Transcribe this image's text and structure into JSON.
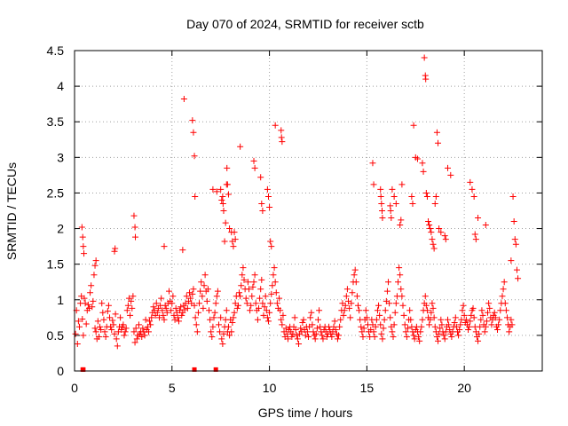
{
  "chart_data": {
    "type": "scatter",
    "title": "Day 070 of 2024, SRMTID for receiver sctb",
    "xlabel": "GPS time / hours",
    "ylabel": "SRMTID / TECUs",
    "xlim": [
      0,
      24
    ],
    "ylim": [
      0,
      4.5
    ],
    "xticks": [
      0,
      5,
      10,
      15,
      20
    ],
    "yticks": [
      0,
      0.5,
      1,
      1.5,
      2,
      2.5,
      3,
      3.5,
      4,
      4.5
    ],
    "xtick_labels": [
      "0",
      "5",
      "10",
      "15",
      "20"
    ],
    "ytick_labels": [
      "0",
      "0.5",
      "1",
      "1.5",
      "2",
      "2.5",
      "3",
      "3.5",
      "4",
      "4.5"
    ],
    "grid": true,
    "series": [
      {
        "name": "SRMTID",
        "marker": "plus",
        "color": "#ff0000",
        "x": [
          0.05,
          0.1,
          0.15,
          0.2,
          0.25,
          0.3,
          0.35,
          0.4,
          0.45,
          0.5,
          0.55,
          0.6,
          0.65,
          0.7,
          0.75,
          0.8,
          0.85,
          0.9,
          0.95,
          1.0,
          1.05,
          1.1,
          1.15,
          1.2,
          1.25,
          1.3,
          1.35,
          1.4,
          1.45,
          1.5,
          1.55,
          1.6,
          1.65,
          1.7,
          1.75,
          1.8,
          1.85,
          1.9,
          1.95,
          2.0,
          2.05,
          2.1,
          2.15,
          2.2,
          2.25,
          2.3,
          2.35,
          2.4,
          2.45,
          2.5,
          2.55,
          2.6,
          2.65,
          2.7,
          2.75,
          2.8,
          2.85,
          2.9,
          2.95,
          3.0,
          3.05,
          3.1,
          3.15,
          3.2,
          3.25,
          3.3,
          3.35,
          3.4,
          3.45,
          3.5,
          3.55,
          3.6,
          3.65,
          3.7,
          3.75,
          3.8,
          3.85,
          3.9,
          3.95,
          4.0,
          4.05,
          4.1,
          4.15,
          4.2,
          4.25,
          4.3,
          4.35,
          4.4,
          4.45,
          4.5,
          4.55,
          4.6,
          4.65,
          4.7,
          4.75,
          4.8,
          4.85,
          4.9,
          4.95,
          5.0,
          5.05,
          5.1,
          5.15,
          5.2,
          5.25,
          5.3,
          5.35,
          5.4,
          5.45,
          5.5,
          5.55,
          5.6,
          5.65,
          5.7,
          5.75,
          5.8,
          5.85,
          5.9,
          5.95,
          6.0,
          6.05,
          6.1,
          6.15,
          6.2,
          6.25,
          6.3,
          6.35,
          6.4,
          6.45,
          6.5,
          6.55,
          6.6,
          6.65,
          6.7,
          6.75,
          6.8,
          6.85,
          6.9,
          6.95,
          7.0,
          7.05,
          7.1,
          7.15,
          7.2,
          7.25,
          7.3,
          7.35,
          7.4,
          7.45,
          7.5,
          7.55,
          7.6,
          7.65,
          7.7,
          7.75,
          7.8,
          7.85,
          7.9,
          7.95,
          8.0,
          8.05,
          8.1,
          8.15,
          8.2,
          8.25,
          8.3,
          8.35,
          8.4,
          8.45,
          8.5,
          8.55,
          8.6,
          8.65,
          8.7,
          8.75,
          8.8,
          8.85,
          8.9,
          8.95,
          9.0,
          9.05,
          9.1,
          9.15,
          9.2,
          9.25,
          9.3,
          9.35,
          9.4,
          9.45,
          9.5,
          9.55,
          9.6,
          9.65,
          9.7,
          9.75,
          9.8,
          9.85,
          9.9,
          9.95,
          10.0,
          10.05,
          10.1,
          10.15,
          10.2,
          10.25,
          10.3,
          10.35,
          10.4,
          10.45,
          10.5,
          10.55,
          10.6,
          10.65,
          10.7,
          10.75,
          10.8,
          10.85,
          10.9,
          10.95,
          11.0,
          11.05,
          11.1,
          11.15,
          11.2,
          11.25,
          11.3,
          11.35,
          11.4,
          11.45,
          11.5,
          11.55,
          11.6,
          11.65,
          11.7,
          11.75,
          11.8,
          11.85,
          11.9,
          11.95,
          12.0,
          12.05,
          12.1,
          12.15,
          12.2,
          12.25,
          12.3,
          12.35,
          12.4,
          12.45,
          12.5,
          12.55,
          12.6,
          12.65,
          12.7,
          12.75,
          12.8,
          12.85,
          12.9,
          12.95,
          13.0,
          13.05,
          13.1,
          13.15,
          13.2,
          13.25,
          13.3,
          13.35,
          13.4,
          13.45,
          13.5,
          13.55,
          13.6,
          13.65,
          13.7,
          13.75,
          13.8,
          13.85,
          13.9,
          13.95,
          14.0,
          14.05,
          14.1,
          14.15,
          14.2,
          14.25,
          14.3,
          14.35,
          14.4,
          14.45,
          14.5,
          14.55,
          14.6,
          14.65,
          14.7,
          14.75,
          14.8,
          14.85,
          14.9,
          14.95,
          15.0,
          15.05,
          15.1,
          15.15,
          15.2,
          15.25,
          15.3,
          15.35,
          15.4,
          15.45,
          15.5,
          15.55,
          15.6,
          15.65,
          15.7,
          15.75,
          15.8,
          15.85,
          15.9,
          15.95,
          16.0,
          16.05,
          16.1,
          16.15,
          16.2,
          16.25,
          16.3,
          16.35,
          16.4,
          16.45,
          16.5,
          16.55,
          16.6,
          16.65,
          16.7,
          16.75,
          16.8,
          16.85,
          16.9,
          16.95,
          17.0,
          17.05,
          17.1,
          17.15,
          17.2,
          17.25,
          17.3,
          17.35,
          17.4,
          17.45,
          17.5,
          17.55,
          17.6,
          17.65,
          17.7,
          17.75,
          17.8,
          17.85,
          17.9,
          17.95,
          18.0,
          18.05,
          18.1,
          18.15,
          18.2,
          18.25,
          18.3,
          18.35,
          18.4,
          18.45,
          18.5,
          18.55,
          18.6,
          18.65,
          18.7,
          18.75,
          18.8,
          18.85,
          18.9,
          18.95,
          19.0,
          19.05,
          19.1,
          19.15,
          19.2,
          19.25,
          19.3,
          19.35,
          19.4,
          19.45,
          19.5,
          19.55,
          19.6,
          19.65,
          19.7,
          19.75,
          19.8,
          19.85,
          19.9,
          19.95,
          20.0,
          20.05,
          20.1,
          20.15,
          20.2,
          20.25,
          20.3,
          20.35,
          20.4,
          20.45,
          20.5,
          20.55,
          20.6,
          20.65,
          20.7,
          20.75,
          20.8,
          20.85,
          20.9,
          20.95,
          21.0,
          21.05,
          21.1,
          21.15,
          21.2,
          21.25,
          21.3,
          21.35,
          21.4,
          21.45,
          21.5,
          21.55,
          21.6,
          21.65,
          21.7,
          21.75,
          21.8,
          21.85,
          21.9,
          21.95,
          22.0,
          22.05,
          22.1,
          22.15,
          22.2,
          22.25,
          22.3,
          22.35,
          22.4,
          22.45,
          22.5,
          22.55,
          22.6,
          22.65,
          22.7,
          22.75,
          0.38,
          0.42,
          0.45,
          0.48,
          1.05,
          1.1,
          2.05,
          2.08,
          3.05,
          3.1,
          3.12,
          4.6,
          5.55,
          5.62,
          6.05,
          6.1,
          6.15,
          6.18,
          7.1,
          7.8,
          7.82,
          7.85,
          7.9,
          8.5,
          9.2,
          9.25,
          9.55,
          9.6,
          9.65,
          9.9,
          9.95,
          10.0,
          10.05,
          10.1,
          10.3,
          10.6,
          10.62,
          10.65,
          15.3,
          15.35,
          15.7,
          15.72,
          15.75,
          15.78,
          15.8,
          16.2,
          16.22,
          16.25,
          16.3,
          16.4,
          16.5,
          16.7,
          16.75,
          16.8,
          17.3,
          17.35,
          17.4,
          17.5,
          17.6,
          17.85,
          17.9,
          17.95,
          18.0,
          18.02,
          18.05,
          18.1,
          18.15,
          18.2,
          18.25,
          18.3,
          18.35,
          18.4,
          18.45,
          18.5,
          18.55,
          18.6,
          18.65,
          18.7,
          18.8,
          19.0,
          19.05,
          19.15,
          19.3,
          20.3,
          20.4,
          20.5,
          20.55,
          20.6,
          20.7,
          21.1,
          22.4,
          7.3,
          7.5,
          7.55,
          7.6,
          7.62,
          7.65,
          7.7,
          7.75,
          7.95,
          8.05,
          8.1,
          8.15,
          8.2,
          8.25,
          0.42,
          0.45,
          6.15,
          7.25
        ],
        "y": [
          0.52,
          0.85,
          0.38,
          0.7,
          0.62,
          0.95,
          1.05,
          0.73,
          0.5,
          1.02,
          0.95,
          0.66,
          0.85,
          0.93,
          0.88,
          1.1,
          1.2,
          0.9,
          0.98,
          1.35,
          0.6,
          0.55,
          0.45,
          0.7,
          0.48,
          0.62,
          0.58,
          0.95,
          0.82,
          0.72,
          0.55,
          0.48,
          0.62,
          0.84,
          0.92,
          0.75,
          0.62,
          0.58,
          0.71,
          0.65,
          0.52,
          0.8,
          0.45,
          0.35,
          0.55,
          0.62,
          0.75,
          0.58,
          0.62,
          0.65,
          0.5,
          0.55,
          0.6,
          0.85,
          0.92,
          1.02,
          0.78,
          0.98,
          0.88,
          1.05,
          0.55,
          0.4,
          0.6,
          0.45,
          0.5,
          0.65,
          0.52,
          0.55,
          0.48,
          0.6,
          0.55,
          0.5,
          0.72,
          0.58,
          0.62,
          0.55,
          0.7,
          0.65,
          0.75,
          0.82,
          0.9,
          0.85,
          0.78,
          0.95,
          0.82,
          0.88,
          0.75,
          0.92,
          1.02,
          0.85,
          0.78,
          0.72,
          0.92,
          0.88,
          0.82,
          0.95,
          1.12,
          0.98,
          0.85,
          0.95,
          1.05,
          0.78,
          0.72,
          0.88,
          0.82,
          0.75,
          0.7,
          0.85,
          0.9,
          0.78,
          0.82,
          0.92,
          0.86,
          0.95,
          1.05,
          0.88,
          0.98,
          1.1,
          1.02,
          0.95,
          1.08,
          1.15,
          0.92,
          0.75,
          0.65,
          0.55,
          0.82,
          0.95,
          1.12,
          1.25,
          1.05,
          0.88,
          1.2,
          1.35,
          1.12,
          0.98,
          1.15,
          0.85,
          0.72,
          0.55,
          0.48,
          0.62,
          0.75,
          0.82,
          0.95,
          1.05,
          1.12,
          0.65,
          0.55,
          0.75,
          0.45,
          0.38,
          0.52,
          0.62,
          0.72,
          0.85,
          0.55,
          0.62,
          0.5,
          0.72,
          0.55,
          0.68,
          0.75,
          0.82,
          0.95,
          1.05,
          0.88,
          0.92,
          1.1,
          1.05,
          1.2,
          1.35,
          1.45,
          1.28,
          1.15,
          1.02,
          0.95,
          1.25,
          1.15,
          0.85,
          0.92,
          1.05,
          1.18,
          1.25,
          1.35,
          0.95,
          0.85,
          0.72,
          0.88,
          1.02,
          1.15,
          1.28,
          0.95,
          0.78,
          0.9,
          1.05,
          0.85,
          0.75,
          0.7,
          0.82,
          0.95,
          1.08,
          1.2,
          1.35,
          1.45,
          1.25,
          1.1,
          0.95,
          0.88,
          1.02,
          0.85,
          0.72,
          0.65,
          0.78,
          0.55,
          0.48,
          0.6,
          0.52,
          0.45,
          0.58,
          0.62,
          0.55,
          0.48,
          0.52,
          0.62,
          0.75,
          0.58,
          0.5,
          0.45,
          0.38,
          0.52,
          0.6,
          0.55,
          0.68,
          0.72,
          0.58,
          0.5,
          0.62,
          0.55,
          0.48,
          0.62,
          0.75,
          0.82,
          0.65,
          0.55,
          0.5,
          0.45,
          0.52,
          0.6,
          0.72,
          0.85,
          0.62,
          0.55,
          0.5,
          0.45,
          0.58,
          0.62,
          0.55,
          0.48,
          0.52,
          0.62,
          0.58,
          0.52,
          0.48,
          0.55,
          0.62,
          0.7,
          0.58,
          0.52,
          0.45,
          0.5,
          0.62,
          0.72,
          0.85,
          0.95,
          0.78,
          0.85,
          0.92,
          1.05,
          1.15,
          0.98,
          0.88,
          0.75,
          0.95,
          1.1,
          1.25,
          1.35,
          1.42,
          1.25,
          1.05,
          0.92,
          0.85,
          0.72,
          0.62,
          0.55,
          0.48,
          0.6,
          0.72,
          0.85,
          0.75,
          0.65,
          0.55,
          0.48,
          0.58,
          0.72,
          0.65,
          0.55,
          0.48,
          0.62,
          0.72,
          0.85,
          0.92,
          0.78,
          0.65,
          0.52,
          0.45,
          0.6,
          0.72,
          0.85,
          0.98,
          1.12,
          1.25,
          0.95,
          0.75,
          0.62,
          0.55,
          0.48,
          0.65,
          0.82,
          0.95,
          1.05,
          1.25,
          1.45,
          1.35,
          1.15,
          1.05,
          0.92,
          0.78,
          0.65,
          0.55,
          0.48,
          0.6,
          0.72,
          0.85,
          0.72,
          0.62,
          0.55,
          0.5,
          0.45,
          0.58,
          0.62,
          0.55,
          0.48,
          0.42,
          0.55,
          0.62,
          0.72,
          0.85,
          0.95,
          1.05,
          0.92,
          0.85,
          0.75,
          0.65,
          0.72,
          0.82,
          0.95,
          0.88,
          0.75,
          0.62,
          0.55,
          0.48,
          0.42,
          0.52,
          0.6,
          0.72,
          0.65,
          0.55,
          0.5,
          0.45,
          0.55,
          0.62,
          0.72,
          0.65,
          0.58,
          0.52,
          0.48,
          0.55,
          0.62,
          0.68,
          0.75,
          0.62,
          0.55,
          0.5,
          0.58,
          0.65,
          0.72,
          0.85,
          0.92,
          0.78,
          0.68,
          0.72,
          0.65,
          0.58,
          0.62,
          0.7,
          0.78,
          0.85,
          0.88,
          0.75,
          0.62,
          0.55,
          0.48,
          0.42,
          0.52,
          0.62,
          0.72,
          0.85,
          0.78,
          0.65,
          0.55,
          0.62,
          0.7,
          0.82,
          0.95,
          0.88,
          0.75,
          0.65,
          0.72,
          0.78,
          0.82,
          0.75,
          0.62,
          0.58,
          0.65,
          0.72,
          0.85,
          0.95,
          1.05,
          1.15,
          1.25,
          0.95,
          0.85,
          0.75,
          0.65,
          0.55,
          0.62,
          0.72,
          0.65,
          2.45,
          2.1,
          1.85,
          1.78,
          1.42,
          1.3,
          2.02,
          1.88,
          1.75,
          1.65,
          1.48,
          1.55,
          1.68,
          1.72,
          2.18,
          2.02,
          1.88,
          1.75,
          1.7,
          3.82,
          3.52,
          3.35,
          3.02,
          2.45,
          2.55,
          2.62,
          2.85,
          2.62,
          2.48,
          3.15,
          2.95,
          2.85,
          2.72,
          2.35,
          2.25,
          2.55,
          2.45,
          2.3,
          1.82,
          1.75,
          3.45,
          3.38,
          3.28,
          3.22,
          2.92,
          2.62,
          2.55,
          2.45,
          2.35,
          2.25,
          2.15,
          2.32,
          2.25,
          2.15,
          2.55,
          2.45,
          2.35,
          2.05,
          2.12,
          2.62,
          2.45,
          2.35,
          3.45,
          3.0,
          2.98,
          2.92,
          2.8,
          4.4,
          4.15,
          4.1,
          2.5,
          2.45,
          2.1,
          2.05,
          2.0,
          1.95,
          1.85,
          1.78,
          1.72,
          2.35,
          2.45,
          3.35,
          3.2,
          2.0,
          1.95,
          1.9,
          1.85,
          2.85,
          2.75,
          2.65,
          2.55,
          2.45,
          1.92,
          1.85,
          2.15,
          2.05,
          1.55,
          2.52,
          2.55,
          2.4,
          2.45,
          2.35,
          2.25,
          1.82,
          2.08,
          2.0,
          1.95,
          1.82,
          1.75,
          1.95,
          1.85,
          0.02,
          0.02,
          0.02,
          0.02
        ]
      }
    ]
  }
}
